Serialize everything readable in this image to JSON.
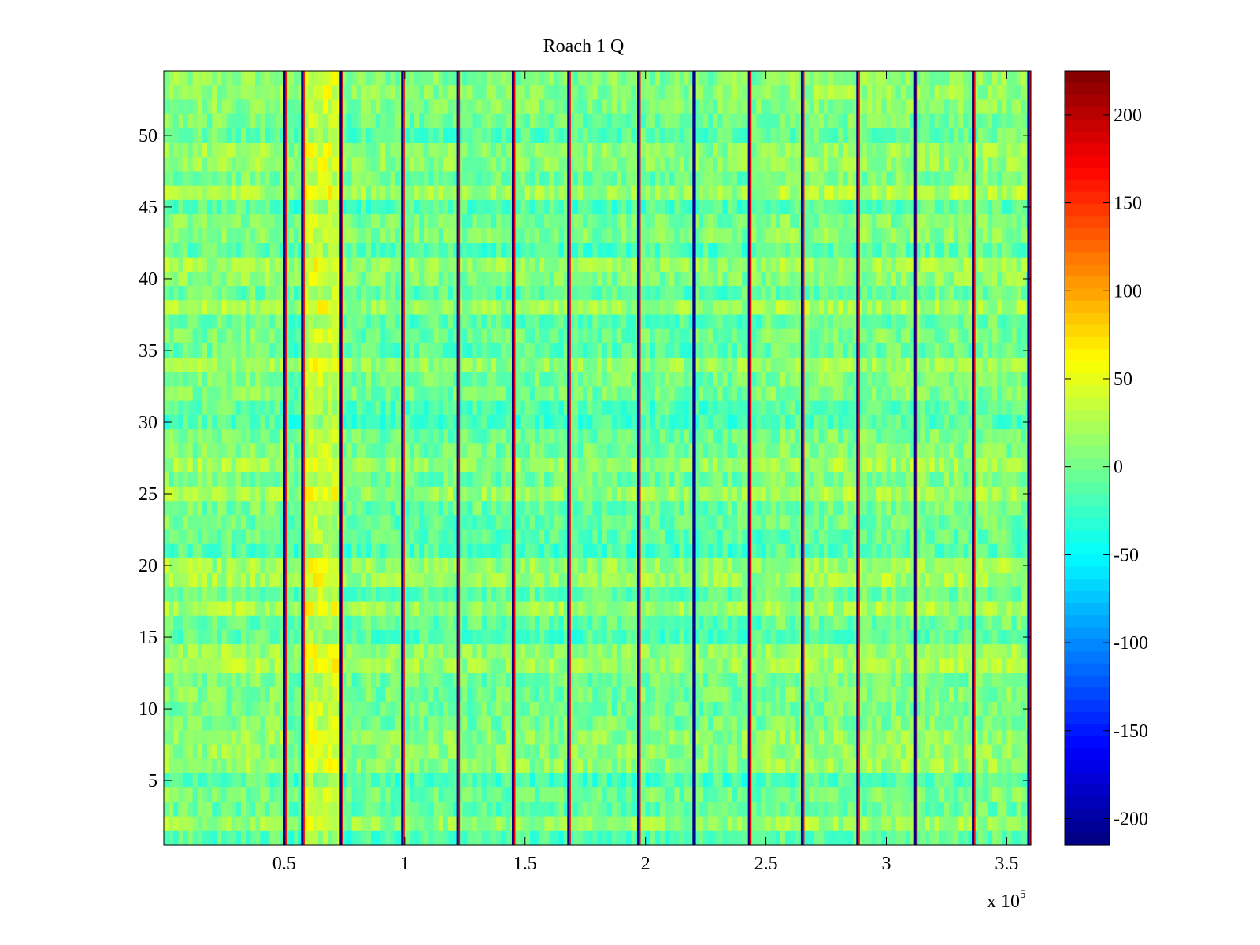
{
  "chart_data": {
    "type": "heatmap",
    "title": "Roach 1 Q",
    "xlabel": "",
    "ylabel": "",
    "x_range": [
      0,
      360000
    ],
    "y_range": [
      1,
      54
    ],
    "x_ticks": [
      {
        "value": 50000,
        "label": "0.5"
      },
      {
        "value": 100000,
        "label": "1"
      },
      {
        "value": 150000,
        "label": "1.5"
      },
      {
        "value": 200000,
        "label": "2"
      },
      {
        "value": 250000,
        "label": "2.5"
      },
      {
        "value": 300000,
        "label": "3"
      },
      {
        "value": 350000,
        "label": "3.5"
      }
    ],
    "x_multiplier": {
      "base": "x 10",
      "exponent": "5"
    },
    "y_ticks": [
      {
        "value": 5,
        "label": "5"
      },
      {
        "value": 10,
        "label": "10"
      },
      {
        "value": 15,
        "label": "15"
      },
      {
        "value": 20,
        "label": "20"
      },
      {
        "value": 25,
        "label": "25"
      },
      {
        "value": 30,
        "label": "30"
      },
      {
        "value": 35,
        "label": "35"
      },
      {
        "value": 40,
        "label": "40"
      },
      {
        "value": 45,
        "label": "45"
      },
      {
        "value": 50,
        "label": "50"
      }
    ],
    "colorbar": {
      "colormap": "jet",
      "range": [
        -215,
        225
      ],
      "ticks": [
        {
          "value": 200,
          "label": "200"
        },
        {
          "value": 150,
          "label": "150"
        },
        {
          "value": 100,
          "label": "100"
        },
        {
          "value": 50,
          "label": "50"
        },
        {
          "value": 0,
          "label": "0"
        },
        {
          "value": -50,
          "label": "-50"
        },
        {
          "value": -100,
          "label": "-100"
        },
        {
          "value": -150,
          "label": "-150"
        },
        {
          "value": -200,
          "label": "-200"
        }
      ]
    },
    "segments": [
      {
        "x_start": 0,
        "x_end": 50000,
        "mean": 5
      },
      {
        "x_start": 50000,
        "x_end": 57500,
        "mean": -5
      },
      {
        "x_start": 57500,
        "x_end": 73500,
        "mean": 35
      },
      {
        "x_start": 73500,
        "x_end": 251000,
        "mean": -2
      },
      {
        "x_start": 251000,
        "x_end": 360000,
        "mean": 5
      }
    ],
    "boundary_markers_x": [
      50000,
      57500,
      73500,
      99000,
      122000,
      145000,
      168000,
      197000,
      220000,
      243000,
      265000,
      288000,
      312000,
      336000,
      359000
    ]
  }
}
